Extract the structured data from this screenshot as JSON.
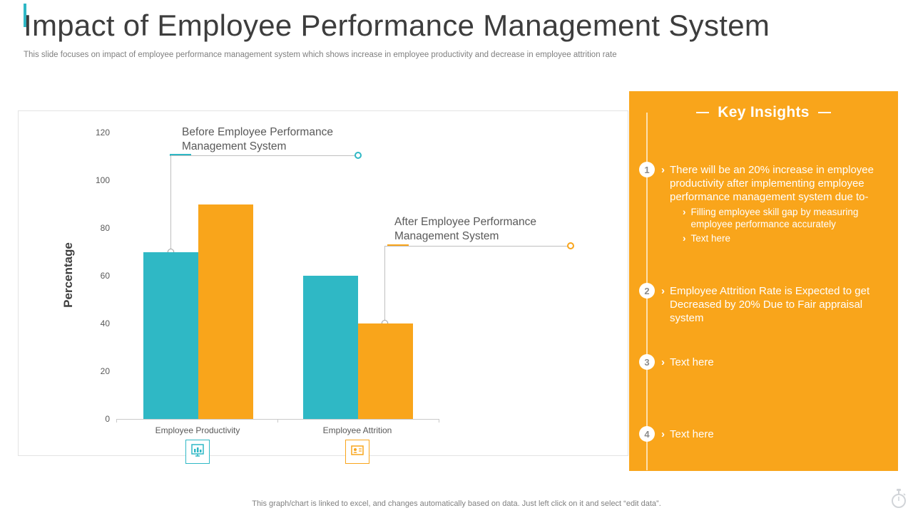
{
  "header": {
    "title": "Impact of Employee Performance Management System",
    "subtitle": "This slide focuses on impact of employee performance management system which shows increase in employee productivity and decrease in employee attrition rate"
  },
  "chart_data": {
    "type": "bar",
    "title": "",
    "categories": [
      "Employee Productivity",
      "Employee Attrition"
    ],
    "series": [
      {
        "name": "Before Employee Performance Management System",
        "color": "#2FB8C5",
        "values": [
          70,
          60
        ]
      },
      {
        "name": "After Employee Performance Management System",
        "color": "#F9A51B",
        "values": [
          90,
          40
        ]
      }
    ],
    "xlabel": "",
    "ylabel": "Percentage",
    "ylim": [
      0,
      120
    ],
    "ytick_step": 20,
    "grid": false,
    "legend_position": "callout-annotations"
  },
  "insights": {
    "title": "Key Insights",
    "items": [
      {
        "number": "1",
        "text": "There will be an 20% increase in employee productivity after implementing employee performance management system due to-",
        "subitems": [
          "Filling employee skill gap by measuring employee performance accurately",
          "Text here"
        ]
      },
      {
        "number": "2",
        "text": "Employee Attrition Rate is Expected to get Decreased by 20% Due to Fair appraisal system",
        "subitems": []
      },
      {
        "number": "3",
        "text": "Text here",
        "subitems": []
      },
      {
        "number": "4",
        "text": "Text here",
        "subitems": []
      }
    ]
  },
  "footer": {
    "note": "This graph/chart is linked to excel, and changes automatically based on data. Just left click on it and select “edit data”."
  },
  "icons": {
    "productivity": "bar-chart-icon",
    "attrition": "id-card-icon",
    "bottom_right": "stopwatch-icon"
  },
  "colors": {
    "teal": "#2FB8C5",
    "orange": "#F9A51B",
    "title_text": "#3d3d3d",
    "muted_text": "#808080",
    "annotation_text": "#595959"
  }
}
